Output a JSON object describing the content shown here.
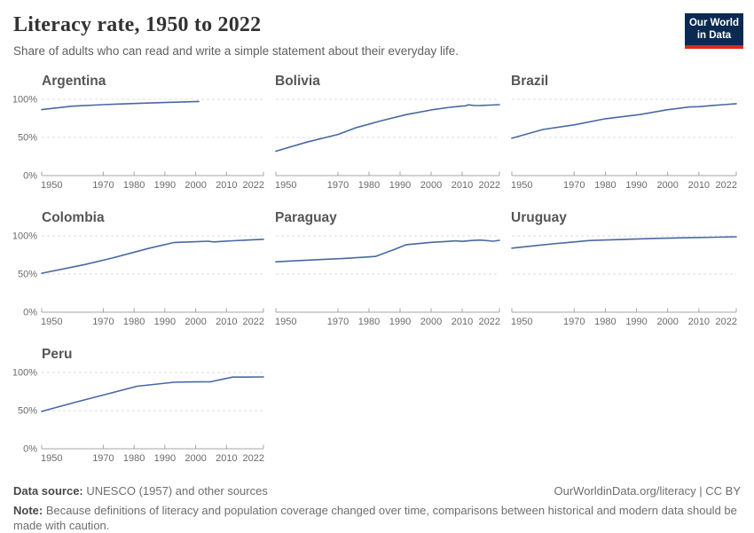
{
  "header": {
    "title": "Literacy rate, 1950 to 2022",
    "subtitle": "Share of adults who can read and write a simple statement about their everyday life.",
    "logo": {
      "line1": "Our World",
      "line2": "in Data",
      "bg": "#0a2a52",
      "bar": "#dc2820"
    }
  },
  "footer": {
    "source_label": "Data source:",
    "source_text": " UNESCO (1957) and other sources",
    "credit": "OurWorldinData.org/literacy | CC BY",
    "note_label": "Note:",
    "note_text": " Because definitions of literacy and population coverage changed over time, comparisons between historical and modern data should be made with caution."
  },
  "chart_style": {
    "line_color": "#4868a3",
    "grid_color": "#dddddd",
    "axis_color": "#a5a5a5",
    "tick_label_color": "#6b6b6b"
  },
  "chart_data": [
    {
      "type": "line",
      "title": "Argentina",
      "y_axis_labels": true,
      "ylim": [
        0,
        100
      ],
      "ytick_labels": [
        "0%",
        "50%",
        "100%"
      ],
      "xlim": [
        1950,
        2022
      ],
      "xticks": [
        1950,
        1970,
        1980,
        1990,
        2000,
        2010,
        2022
      ],
      "x": [
        1950,
        1960,
        1970,
        1980,
        1991,
        2001
      ],
      "values": [
        86.5,
        91,
        93,
        94.5,
        96,
        97.2
      ]
    },
    {
      "type": "line",
      "title": "Bolivia",
      "y_axis_labels": false,
      "ylim": [
        0,
        100
      ],
      "ytick_labels": [
        "0%",
        "50%",
        "100%"
      ],
      "xlim": [
        1950,
        2022
      ],
      "xticks": [
        1950,
        1970,
        1980,
        1990,
        2000,
        2010,
        2022
      ],
      "x": [
        1950,
        1960,
        1970,
        1976,
        1984,
        1992,
        2001,
        2006,
        2010,
        2011,
        2012,
        2014,
        2016,
        2019,
        2022
      ],
      "values": [
        32,
        44,
        54,
        63,
        72,
        80,
        86.7,
        89.5,
        91.2,
        91.4,
        92.8,
        91.9,
        92,
        92.4,
        93
      ]
    },
    {
      "type": "line",
      "title": "Brazil",
      "y_axis_labels": false,
      "ylim": [
        0,
        100
      ],
      "ytick_labels": [
        "0%",
        "50%",
        "100%"
      ],
      "xlim": [
        1950,
        2022
      ],
      "xticks": [
        1950,
        1970,
        1980,
        1990,
        2000,
        2010,
        2022
      ],
      "x": [
        1950,
        1960,
        1970,
        1980,
        1991,
        2000,
        2007,
        2010,
        2014,
        2018,
        2022
      ],
      "values": [
        49,
        60.5,
        66.5,
        74.5,
        80,
        86.4,
        90,
        90.4,
        91.7,
        93,
        94.3
      ]
    },
    {
      "type": "line",
      "title": "Colombia",
      "y_axis_labels": true,
      "ylim": [
        0,
        100
      ],
      "ytick_labels": [
        "0%",
        "50%",
        "100%"
      ],
      "xlim": [
        1950,
        2022
      ],
      "xticks": [
        1950,
        1970,
        1980,
        1990,
        2000,
        2010,
        2022
      ],
      "x": [
        1950,
        1964,
        1973,
        1985,
        1993,
        1999,
        2004,
        2006,
        2008,
        2012,
        2016,
        2019,
        2022
      ],
      "values": [
        51,
        62.5,
        71,
        84,
        91.4,
        92.2,
        93,
        92.1,
        92.7,
        93.6,
        94.4,
        95,
        95.6
      ]
    },
    {
      "type": "line",
      "title": "Paraguay",
      "y_axis_labels": false,
      "ylim": [
        0,
        100
      ],
      "ytick_labels": [
        "0%",
        "50%",
        "100%"
      ],
      "xlim": [
        1950,
        2022
      ],
      "xticks": [
        1950,
        1970,
        1980,
        1990,
        2000,
        2010,
        2022
      ],
      "x": [
        1950,
        1962,
        1972,
        1982,
        1988,
        1992,
        2000,
        2008,
        2010,
        2013,
        2016,
        2020,
        2022
      ],
      "values": [
        66,
        68.5,
        70.5,
        73,
        82,
        88.5,
        91.5,
        93.5,
        92.8,
        93.9,
        94.5,
        93,
        94.2
      ]
    },
    {
      "type": "line",
      "title": "Uruguay",
      "y_axis_labels": false,
      "ylim": [
        0,
        100
      ],
      "ytick_labels": [
        "0%",
        "50%",
        "100%"
      ],
      "xlim": [
        1950,
        2022
      ],
      "xticks": [
        1950,
        1970,
        1980,
        1990,
        2000,
        2010,
        2022
      ],
      "x": [
        1950,
        1957,
        1963,
        1975,
        1985,
        1996,
        2006,
        2015,
        2022
      ],
      "values": [
        84,
        87,
        89.5,
        94,
        95.2,
        96.7,
        97.6,
        98.2,
        98.8
      ]
    },
    {
      "type": "line",
      "title": "Peru",
      "y_axis_labels": true,
      "ylim": [
        0,
        100
      ],
      "ytick_labels": [
        "0%",
        "50%",
        "100%"
      ],
      "xlim": [
        1950,
        2022
      ],
      "xticks": [
        1950,
        1970,
        1980,
        1990,
        2000,
        2010,
        2022
      ],
      "x": [
        1950,
        1961,
        1972,
        1981,
        1993,
        2000,
        2005,
        2007,
        2012,
        2017,
        2022
      ],
      "values": [
        49,
        61,
        72.5,
        82,
        87.2,
        87.7,
        87.9,
        89.6,
        94,
        94,
        94.2
      ]
    }
  ]
}
